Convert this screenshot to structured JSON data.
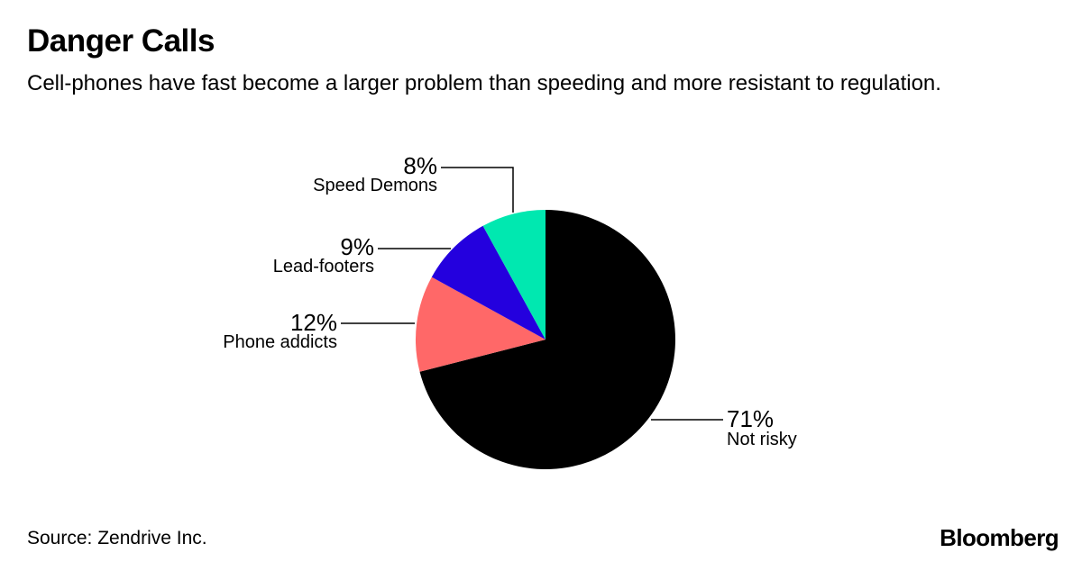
{
  "title": "Danger Calls",
  "subtitle": "Cell-phones have fast become a larger problem than speeding and more resistant to regulation.",
  "source": "Source: Zendrive Inc.",
  "brand": "Bloomberg",
  "chart_data": {
    "type": "pie",
    "title": "Danger Calls",
    "start_angle_deg": 0,
    "direction": "clockwise",
    "slices": [
      {
        "key": "not-risky",
        "label": "Not risky",
        "value": 71,
        "value_label": "71%",
        "color": "#000000"
      },
      {
        "key": "phone-addicts",
        "label": "Phone addicts",
        "value": 12,
        "value_label": "12%",
        "color": "#ff6868"
      },
      {
        "key": "lead-footers",
        "label": "Lead-footers",
        "value": 9,
        "value_label": "9%",
        "color": "#2400de"
      },
      {
        "key": "speed-demons",
        "label": "Speed Demons",
        "value": 8,
        "value_label": "8%",
        "color": "#00e8b0"
      }
    ]
  }
}
